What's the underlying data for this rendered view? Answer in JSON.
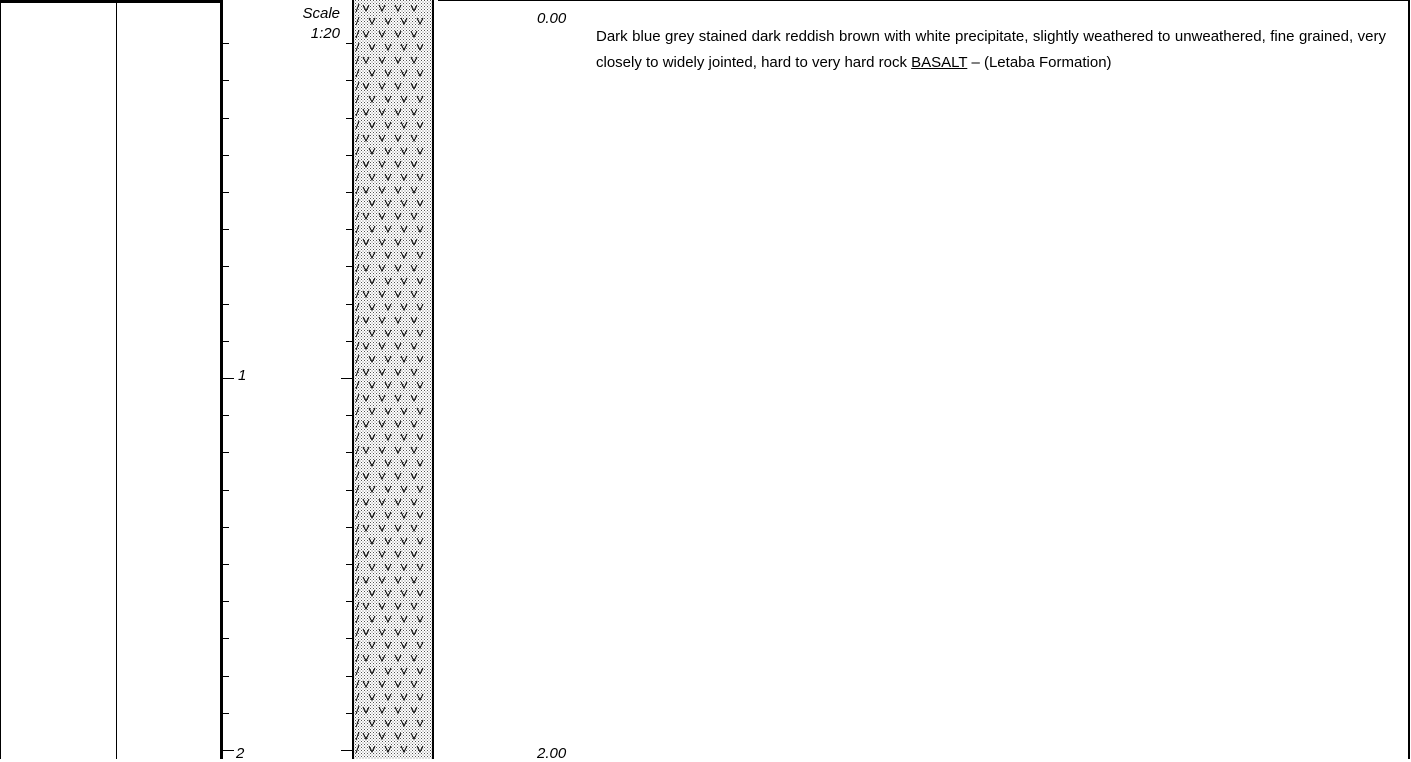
{
  "scale": {
    "label": "Scale",
    "ratio": "1:20"
  },
  "depth_axis": {
    "labels": [
      "1",
      "2"
    ],
    "ticks_per_metre": 10,
    "max_depth_m": 2
  },
  "layers": [
    {
      "top_depth": "0.00",
      "bottom_depth": "2.00",
      "description_intro": "Dark blue grey stained dark reddish brown with white precipitate, slightly weathered to unweathered, fine grained, very closely to widely jointed, hard to very hard rock",
      "rock_name": "BASALT",
      "formation": " – (Letaba Formation)",
      "pattern": "basalt-v-stipple"
    }
  ],
  "colors": {
    "line": "#000000",
    "background": "#ffffff",
    "stipple": "#555555"
  }
}
